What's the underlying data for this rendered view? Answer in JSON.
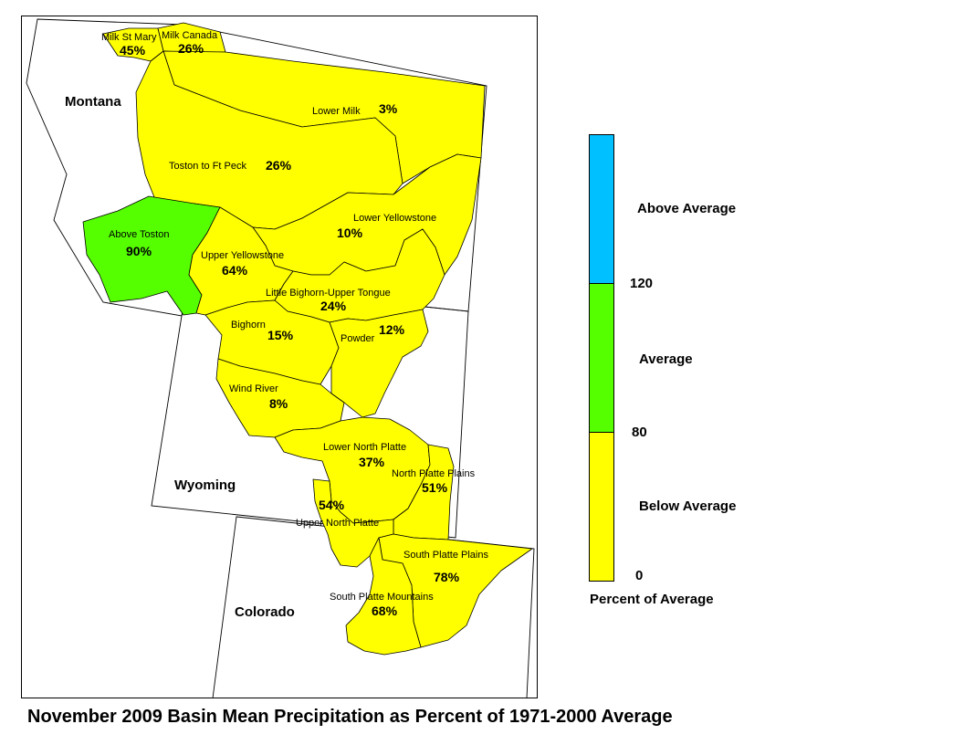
{
  "title": "November 2009 Basin Mean Precipitation as Percent of 1971-2000 Average",
  "colors": {
    "above": "#00c0ff",
    "average": "#55ff00",
    "below": "#ffff00"
  },
  "states": {
    "montana": "Montana",
    "wyoming": "Wyoming",
    "colorado": "Colorado"
  },
  "basins": [
    {
      "id": "milk-st-mary",
      "name": "Milk St Mary",
      "pct": "45%",
      "category": "below"
    },
    {
      "id": "milk-canada",
      "name": "Milk Canada",
      "pct": "26%",
      "category": "below"
    },
    {
      "id": "lower-milk",
      "name": "Lower Milk",
      "pct": "3%",
      "category": "below"
    },
    {
      "id": "toston-to-ft-peck",
      "name": "Toston to Ft Peck",
      "pct": "26%",
      "category": "below"
    },
    {
      "id": "above-toston",
      "name": "Above Toston",
      "pct": "90%",
      "category": "average"
    },
    {
      "id": "lower-yellowstone",
      "name": "Lower Yellowstone",
      "pct": "10%",
      "category": "below"
    },
    {
      "id": "upper-yellowstone",
      "name": "Upper Yellowstone",
      "pct": "64%",
      "category": "below"
    },
    {
      "id": "little-bighorn-upper-tongue",
      "name": "Little Bighorn-Upper Tongue",
      "pct": "24%",
      "category": "below"
    },
    {
      "id": "bighorn",
      "name": "Bighorn",
      "pct": "15%",
      "category": "below"
    },
    {
      "id": "powder",
      "name": "Powder",
      "pct": "12%",
      "category": "below"
    },
    {
      "id": "wind-river",
      "name": "Wind River",
      "pct": "8%",
      "category": "below"
    },
    {
      "id": "lower-north-platte",
      "name": "Lower North Platte",
      "pct": "37%",
      "category": "below"
    },
    {
      "id": "north-platte-plains",
      "name": "North Platte Plains",
      "pct": "51%",
      "category": "below"
    },
    {
      "id": "upper-north-platte",
      "name": "Upper North Platte",
      "pct": "54%",
      "category": "below"
    },
    {
      "id": "south-platte-plains",
      "name": "South Platte Plains",
      "pct": "78%",
      "category": "below"
    },
    {
      "id": "south-platte-mountains",
      "name": "South Platte Mountains",
      "pct": "68%",
      "category": "below"
    }
  ],
  "legend": {
    "items": [
      {
        "label": "Above Average",
        "category": "above"
      },
      {
        "label": "Average",
        "category": "average"
      },
      {
        "label": "Below Average",
        "category": "below"
      }
    ],
    "ticks": [
      "120",
      "80",
      "0"
    ],
    "caption": "Percent of Average"
  }
}
